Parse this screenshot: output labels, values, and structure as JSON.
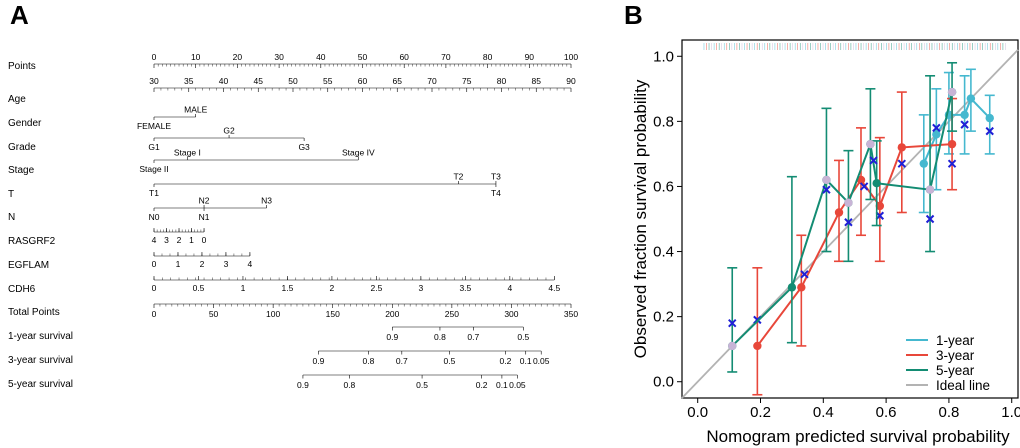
{
  "panels": {
    "left_label": "A",
    "right_label": "B"
  },
  "chart_data": [
    {
      "type": "nomogram",
      "rows": [
        {
          "label": "Points",
          "kind": "axis",
          "min": 0,
          "max": 100,
          "major": [
            0,
            10,
            20,
            30,
            40,
            50,
            60,
            70,
            80,
            90,
            100
          ],
          "minor_step": 1
        },
        {
          "label": "Age",
          "kind": "axis",
          "min": 30,
          "max": 90,
          "major": [
            30,
            35,
            40,
            45,
            50,
            55,
            60,
            65,
            70,
            75,
            80,
            85,
            90
          ],
          "minor_step": 1,
          "label_points_start": 0,
          "label_points_end": 100
        },
        {
          "label": "Gender",
          "kind": "categorical",
          "points_start": 0,
          "points_end": 10,
          "items": [
            {
              "text": "MALE",
              "points": 10,
              "side": "above"
            },
            {
              "text": "FEMALE",
              "points": 0,
              "side": "below"
            }
          ]
        },
        {
          "label": "Grade",
          "kind": "categorical",
          "points_start": 0,
          "points_end": 36,
          "items": [
            {
              "text": "G2",
              "points": 18,
              "side": "above"
            },
            {
              "text": "G1",
              "points": 0,
              "side": "below"
            },
            {
              "text": "G3",
              "points": 36,
              "side": "below"
            }
          ]
        },
        {
          "label": "Stage",
          "kind": "categorical",
          "points_start": 0,
          "points_end": 49,
          "items": [
            {
              "text": "Stage I",
              "points": 8,
              "side": "above"
            },
            {
              "text": "Stage IV",
              "points": 49,
              "side": "above"
            },
            {
              "text": "Stage II",
              "points": 0,
              "side": "below"
            }
          ]
        },
        {
          "label": "T",
          "kind": "categorical",
          "points_start": 0,
          "points_end": 82,
          "items": [
            {
              "text": "T2",
              "points": 73,
              "side": "above"
            },
            {
              "text": "T3",
              "points": 82,
              "side": "above"
            },
            {
              "text": "T1",
              "points": 0,
              "side": "below"
            },
            {
              "text": "T4",
              "points": 82,
              "side": "below"
            }
          ]
        },
        {
          "label": "N",
          "kind": "categorical",
          "points_start": 0,
          "points_end": 27,
          "items": [
            {
              "text": "N2",
              "points": 12,
              "side": "above"
            },
            {
              "text": "N3",
              "points": 27,
              "side": "above"
            },
            {
              "text": "N0",
              "points": 0,
              "side": "below"
            },
            {
              "text": "N1",
              "points": 12,
              "side": "below"
            }
          ]
        },
        {
          "label": "RASGRF2",
          "kind": "axis_below",
          "points_start": 0,
          "points_end": 12,
          "ticks": [
            "4",
            "3",
            "2",
            "1",
            "0"
          ],
          "minor_count": 16
        },
        {
          "label": "EGFLAM",
          "kind": "axis_below",
          "points_start": 0,
          "points_end": 23,
          "ticks": [
            "0",
            "1",
            "2",
            "3",
            "4"
          ],
          "minor_count": 12
        },
        {
          "label": "CDH6",
          "kind": "axis_below",
          "points_start": 0,
          "points_end": 96,
          "ticks": [
            "0",
            "0.5",
            "1",
            "1.5",
            "2",
            "2.5",
            "3",
            "3.5",
            "4",
            "4.5"
          ],
          "minor_count": 48
        },
        {
          "label": "Total Points",
          "kind": "total",
          "min": 0,
          "max": 350,
          "major": [
            0,
            50,
            100,
            150,
            200,
            250,
            300,
            350
          ],
          "minor_step": 5
        },
        {
          "label": "1-year survival",
          "kind": "survival",
          "total_start": 200,
          "total_end": 310,
          "ticks": [
            {
              "text": "0.9",
              "total": 200
            },
            {
              "text": "0.8",
              "total": 240
            },
            {
              "text": "0.7",
              "total": 268
            },
            {
              "text": "0.5",
              "total": 310
            }
          ]
        },
        {
          "label": "3-year survival",
          "kind": "survival",
          "total_start": 138,
          "total_end": 325,
          "ticks": [
            {
              "text": "0.9",
              "total": 138
            },
            {
              "text": "0.8",
              "total": 180
            },
            {
              "text": "0.7",
              "total": 208
            },
            {
              "text": "0.5",
              "total": 248
            },
            {
              "text": "0.2",
              "total": 295
            },
            {
              "text": "0.1",
              "total": 312
            },
            {
              "text": "0.05",
              "total": 325
            }
          ]
        },
        {
          "label": "5-year survival",
          "kind": "survival",
          "total_start": 125,
          "total_end": 305,
          "ticks": [
            {
              "text": "0.9",
              "total": 125
            },
            {
              "text": "0.8",
              "total": 164
            },
            {
              "text": "0.5",
              "total": 225
            },
            {
              "text": "0.2",
              "total": 275
            },
            {
              "text": "0.1",
              "total": 292
            },
            {
              "text": "0.05",
              "total": 305
            }
          ]
        }
      ]
    },
    {
      "type": "line",
      "title": "",
      "xlabel": "Nomogram predicted survival probability",
      "ylabel": "Observed fraction survival probability",
      "xlim": [
        -0.05,
        1.02
      ],
      "ylim": [
        -0.05,
        1.05
      ],
      "xticks": [
        "0.0",
        "0.2",
        "0.4",
        "0.6",
        "0.8",
        "1.0"
      ],
      "yticks": [
        "0.0",
        "0.2",
        "0.4",
        "0.6",
        "0.8",
        "1.0"
      ],
      "ideal_line": {
        "name": "Ideal line",
        "color": "#b3b3b3",
        "x": [
          -0.05,
          1.02
        ],
        "y": [
          -0.05,
          1.02
        ]
      },
      "series": [
        {
          "name": "1-year",
          "color": "#45b8cf",
          "points": [
            {
              "x": 0.72,
              "y": 0.67,
              "lo": 0.52,
              "hi": 0.82
            },
            {
              "x": 0.76,
              "y": 0.76,
              "lo": 0.59,
              "hi": 0.9
            },
            {
              "x": 0.8,
              "y": 0.82,
              "lo": 0.7,
              "hi": 0.95
            },
            {
              "x": 0.85,
              "y": 0.82,
              "lo": 0.7,
              "hi": 0.94
            },
            {
              "x": 0.87,
              "y": 0.87,
              "lo": 0.77,
              "hi": 0.96
            },
            {
              "x": 0.93,
              "y": 0.81,
              "lo": 0.7,
              "hi": 0.88
            }
          ],
          "crosses": [
            {
              "x": 0.76,
              "y": 0.78
            },
            {
              "x": 0.85,
              "y": 0.79
            },
            {
              "x": 0.93,
              "y": 0.77
            }
          ]
        },
        {
          "name": "3-year",
          "color": "#e8473a",
          "points": [
            {
              "x": 0.19,
              "y": 0.11,
              "lo": -0.04,
              "hi": 0.35
            },
            {
              "x": 0.33,
              "y": 0.29,
              "lo": 0.11,
              "hi": 0.45
            },
            {
              "x": 0.45,
              "y": 0.52,
              "lo": 0.37,
              "hi": 0.68
            },
            {
              "x": 0.52,
              "y": 0.62,
              "lo": 0.45,
              "hi": 0.78
            },
            {
              "x": 0.58,
              "y": 0.54,
              "lo": 0.37,
              "hi": 0.75
            },
            {
              "x": 0.65,
              "y": 0.72,
              "lo": 0.52,
              "hi": 0.89
            },
            {
              "x": 0.81,
              "y": 0.73,
              "lo": 0.59,
              "hi": 0.87
            }
          ],
          "crosses": [
            {
              "x": 0.19,
              "y": 0.19
            },
            {
              "x": 0.58,
              "y": 0.51
            },
            {
              "x": 0.65,
              "y": 0.67
            },
            {
              "x": 0.81,
              "y": 0.67
            }
          ]
        },
        {
          "name": "5-year",
          "color": "#138c73",
          "points": [
            {
              "x": 0.11,
              "y": 0.11,
              "lo": 0.03,
              "hi": 0.35
            },
            {
              "x": 0.3,
              "y": 0.29,
              "lo": 0.12,
              "hi": 0.63
            },
            {
              "x": 0.41,
              "y": 0.62,
              "lo": 0.4,
              "hi": 0.84
            },
            {
              "x": 0.48,
              "y": 0.55,
              "lo": 0.37,
              "hi": 0.71
            },
            {
              "x": 0.55,
              "y": 0.73,
              "lo": 0.56,
              "hi": 0.9
            },
            {
              "x": 0.57,
              "y": 0.61,
              "lo": 0.48,
              "hi": 0.74
            },
            {
              "x": 0.74,
              "y": 0.59,
              "lo": 0.4,
              "hi": 0.94
            },
            {
              "x": 0.81,
              "y": 0.89,
              "lo": 0.77,
              "hi": 0.98
            }
          ],
          "crosses": [
            {
              "x": 0.11,
              "y": 0.18
            },
            {
              "x": 0.34,
              "y": 0.33
            },
            {
              "x": 0.41,
              "y": 0.59
            },
            {
              "x": 0.48,
              "y": 0.49
            },
            {
              "x": 0.53,
              "y": 0.6
            },
            {
              "x": 0.56,
              "y": 0.68
            },
            {
              "x": 0.74,
              "y": 0.5
            }
          ]
        }
      ],
      "legend": {
        "position": "bottom-right",
        "entries": [
          "1-year",
          "3-year",
          "5-year",
          "Ideal line"
        ]
      }
    }
  ]
}
